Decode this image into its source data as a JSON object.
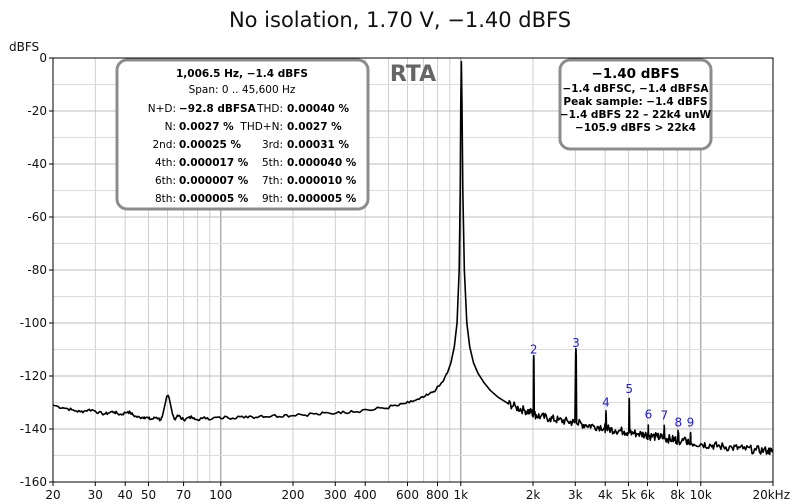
{
  "chart_data": {
    "type": "line",
    "title": "No isolation, 1.70 V, −1.40 dBFS",
    "ylabel": "dBFS",
    "x_scale": "log",
    "xlim": [
      20,
      20000
    ],
    "ylim": [
      -160,
      0
    ],
    "x_ticks": [
      {
        "value": 20,
        "label": "20"
      },
      {
        "value": 30,
        "label": "30"
      },
      {
        "value": 40,
        "label": "40"
      },
      {
        "value": 50,
        "label": "50"
      },
      {
        "value": 70,
        "label": "70"
      },
      {
        "value": 100,
        "label": "100"
      },
      {
        "value": 200,
        "label": "200"
      },
      {
        "value": 300,
        "label": "300"
      },
      {
        "value": 400,
        "label": "400"
      },
      {
        "value": 600,
        "label": "600"
      },
      {
        "value": 800,
        "label": "800"
      },
      {
        "value": 1000,
        "label": "1k"
      },
      {
        "value": 2000,
        "label": "2k"
      },
      {
        "value": 3000,
        "label": "3k"
      },
      {
        "value": 4000,
        "label": "4k"
      },
      {
        "value": 5000,
        "label": "5k"
      },
      {
        "value": 6000,
        "label": "6k"
      },
      {
        "value": 8000,
        "label": "8k"
      },
      {
        "value": 10000,
        "label": "10k"
      },
      {
        "value": 20000,
        "label": "20kHz"
      }
    ],
    "y_ticks": [
      {
        "value": 0,
        "label": "0"
      },
      {
        "value": -20,
        "label": "-20"
      },
      {
        "value": -40,
        "label": "-40"
      },
      {
        "value": -60,
        "label": "-60"
      },
      {
        "value": -80,
        "label": "-80"
      },
      {
        "value": -100,
        "label": "-100"
      },
      {
        "value": -120,
        "label": "-120"
      },
      {
        "value": -140,
        "label": "-140"
      },
      {
        "value": -160,
        "label": "-160"
      }
    ],
    "grid": true,
    "series": [
      {
        "color": "#000000",
        "points": [
          [
            20,
            -131
          ],
          [
            21,
            -131.5
          ],
          [
            22,
            -132
          ],
          [
            23,
            -132.3
          ],
          [
            24,
            -132.8
          ],
          [
            25,
            -133.2
          ],
          [
            26,
            -133.5
          ],
          [
            27,
            -133.2
          ],
          [
            28,
            -132.8
          ],
          [
            29,
            -132.8
          ],
          [
            30,
            -133.2
          ],
          [
            31,
            -133.8
          ],
          [
            32,
            -134.2
          ],
          [
            33,
            -134.3
          ],
          [
            34,
            -134
          ],
          [
            35,
            -133.5
          ],
          [
            36,
            -133.6
          ],
          [
            37,
            -134.1
          ],
          [
            38,
            -134.5
          ],
          [
            39,
            -134.4
          ],
          [
            40,
            -133.8
          ],
          [
            41,
            -133.5
          ],
          [
            42,
            -133.9
          ],
          [
            43,
            -134.6
          ],
          [
            44,
            -135.2
          ],
          [
            45,
            -135.5
          ],
          [
            46,
            -135.6
          ],
          [
            47,
            -135.6
          ],
          [
            48,
            -135.5
          ],
          [
            49,
            -135.6
          ],
          [
            50,
            -136
          ],
          [
            51,
            -136.3
          ],
          [
            52,
            -136.2
          ],
          [
            53,
            -135.8
          ],
          [
            54,
            -135.6
          ],
          [
            55,
            -136
          ],
          [
            56,
            -136.6
          ],
          [
            57,
            -135.5
          ],
          [
            58,
            -132.5
          ],
          [
            59,
            -129.5
          ],
          [
            60,
            -127.5
          ],
          [
            61,
            -128.5
          ],
          [
            62,
            -131.5
          ],
          [
            63,
            -134.5
          ],
          [
            64,
            -136.3
          ],
          [
            65,
            -135.8
          ],
          [
            66,
            -134.8
          ],
          [
            67,
            -134.9
          ],
          [
            68,
            -135.8
          ],
          [
            70,
            -136.5
          ],
          [
            72,
            -136
          ],
          [
            74,
            -135.4
          ],
          [
            76,
            -135.8
          ],
          [
            78,
            -136.4
          ],
          [
            80,
            -136.5
          ],
          [
            84,
            -136
          ],
          [
            88,
            -135.8
          ],
          [
            92,
            -136.2
          ],
          [
            96,
            -135.6
          ],
          [
            100,
            -136
          ],
          [
            106,
            -135.4
          ],
          [
            112,
            -135.9
          ],
          [
            118,
            -135.2
          ],
          [
            125,
            -135.8
          ],
          [
            132,
            -135.1
          ],
          [
            140,
            -135.6
          ],
          [
            148,
            -134.9
          ],
          [
            156,
            -135.4
          ],
          [
            165,
            -134.8
          ],
          [
            175,
            -135.3
          ],
          [
            185,
            -134.6
          ],
          [
            195,
            -135.1
          ],
          [
            210,
            -134.3
          ],
          [
            225,
            -134.8
          ],
          [
            240,
            -134.1
          ],
          [
            255,
            -134.6
          ],
          [
            270,
            -133.9
          ],
          [
            290,
            -134.3
          ],
          [
            310,
            -133.5
          ],
          [
            330,
            -133.9
          ],
          [
            350,
            -133.1
          ],
          [
            370,
            -133.5
          ],
          [
            400,
            -132.6
          ],
          [
            430,
            -132.9
          ],
          [
            460,
            -132
          ],
          [
            490,
            -132.2
          ],
          [
            520,
            -131.2
          ],
          [
            550,
            -131.2
          ],
          [
            580,
            -130.4
          ],
          [
            610,
            -130.1
          ],
          [
            640,
            -129.3
          ],
          [
            670,
            -128.8
          ],
          [
            700,
            -128
          ],
          [
            730,
            -127.2
          ],
          [
            760,
            -126.2
          ],
          [
            790,
            -125
          ],
          [
            820,
            -123.4
          ],
          [
            850,
            -121.5
          ],
          [
            880,
            -118.8
          ],
          [
            910,
            -115
          ],
          [
            940,
            -109
          ],
          [
            965,
            -100
          ],
          [
            985,
            -80
          ],
          [
            995,
            -50
          ],
          [
            1000,
            -18
          ],
          [
            1006,
            -1.4
          ],
          [
            1012,
            -18
          ],
          [
            1020,
            -50
          ],
          [
            1035,
            -80
          ],
          [
            1060,
            -100
          ],
          [
            1090,
            -109
          ],
          [
            1130,
            -115
          ],
          [
            1180,
            -119
          ],
          [
            1250,
            -122.5
          ],
          [
            1330,
            -125.5
          ],
          [
            1430,
            -128
          ],
          [
            1550,
            -130
          ],
          [
            1700,
            -131.8
          ],
          [
            1850,
            -133
          ],
          [
            1980,
            -133.8
          ],
          [
            2005,
            -134.2
          ],
          [
            2010,
            -114
          ],
          [
            2013,
            -113.5
          ],
          [
            2018,
            -114
          ],
          [
            2025,
            -134.5
          ],
          [
            2150,
            -135.3
          ],
          [
            2350,
            -136
          ],
          [
            2550,
            -136.6
          ],
          [
            2800,
            -137.2
          ],
          [
            2990,
            -137.6
          ],
          [
            3012,
            -111.5
          ],
          [
            3020,
            -111
          ],
          [
            3028,
            -112
          ],
          [
            3040,
            -137.8
          ],
          [
            3300,
            -138.4
          ],
          [
            3600,
            -138.9
          ],
          [
            3980,
            -139.3
          ],
          [
            4010,
            -140
          ],
          [
            4025,
            -134.5
          ],
          [
            4035,
            -134.4
          ],
          [
            4050,
            -139.9
          ],
          [
            4400,
            -140.4
          ],
          [
            4800,
            -140.9
          ],
          [
            5010,
            -141.2
          ],
          [
            5030,
            -129.8
          ],
          [
            5040,
            -129.6
          ],
          [
            5060,
            -141.3
          ],
          [
            5500,
            -141.8
          ],
          [
            6000,
            -142.2
          ],
          [
            6030,
            -142.5
          ],
          [
            6045,
            -138.5
          ],
          [
            6060,
            -142.6
          ],
          [
            6600,
            -143
          ],
          [
            7000,
            -143.3
          ],
          [
            7040,
            -139.6
          ],
          [
            7055,
            -139.5
          ],
          [
            7080,
            -143.5
          ],
          [
            7600,
            -143.9
          ],
          [
            8000,
            -144.2
          ],
          [
            8050,
            -141.6
          ],
          [
            8070,
            -141.5
          ],
          [
            8100,
            -144.3
          ],
          [
            8700,
            -144.7
          ],
          [
            9040,
            -145.1
          ],
          [
            9058,
            -142.4
          ],
          [
            9075,
            -142.4
          ],
          [
            9100,
            -145.2
          ],
          [
            10000,
            -145.6
          ],
          [
            11000,
            -146.1
          ],
          [
            12000,
            -146.5
          ],
          [
            13500,
            -147
          ],
          [
            15000,
            -147.4
          ],
          [
            17000,
            -147.9
          ],
          [
            19000,
            -148.2
          ],
          [
            20000,
            -148.5
          ]
        ]
      }
    ],
    "harmonic_labels": [
      {
        "text": "2",
        "x": 2013,
        "y": -111.5
      },
      {
        "text": "3",
        "x": 3020,
        "y": -109
      },
      {
        "text": "4",
        "x": 4030,
        "y": -131.5
      },
      {
        "text": "5",
        "x": 5035,
        "y": -126.5
      },
      {
        "text": "6",
        "x": 6050,
        "y": -136
      },
      {
        "text": "7",
        "x": 7050,
        "y": -136.5
      },
      {
        "text": "8",
        "x": 8060,
        "y": -139
      },
      {
        "text": "9",
        "x": 9060,
        "y": -139
      }
    ],
    "annotation": "RTA"
  },
  "stats_box": {
    "line1": "1,006.5 Hz, −1.4 dBFS",
    "line2": "Span: 0 .. 45,600 Hz",
    "rows": [
      {
        "l_label": "N+D:",
        "l_value": "−92.8 dBFSA",
        "r_label": "THD:",
        "r_value": "0.00040 %"
      },
      {
        "l_label": "N:",
        "l_value": "0.0027 %",
        "r_label": "THD+N:",
        "r_value": "0.0027 %"
      },
      {
        "l_label": "2nd:",
        "l_value": "0.00025 %",
        "r_label": "3rd:",
        "r_value": "0.00031 %"
      },
      {
        "l_label": "4th:",
        "l_value": "0.000017 %",
        "r_label": "5th:",
        "r_value": "0.000040 %"
      },
      {
        "l_label": "6th:",
        "l_value": "0.000007 %",
        "r_label": "7th:",
        "r_value": "0.000010 %"
      },
      {
        "l_label": "8th:",
        "l_value": "0.000005 %",
        "r_label": "9th:",
        "r_value": "0.000005 %"
      }
    ]
  },
  "level_box": {
    "headline": "−1.40 dBFS",
    "lines": [
      "−1.4 dBFSC, −1.4 dBFSA",
      "Peak sample: −1.4 dBFS",
      "−1.4 dBFS 22 – 22k4 unW",
      "−105.9 dBFS > 22k4"
    ]
  }
}
